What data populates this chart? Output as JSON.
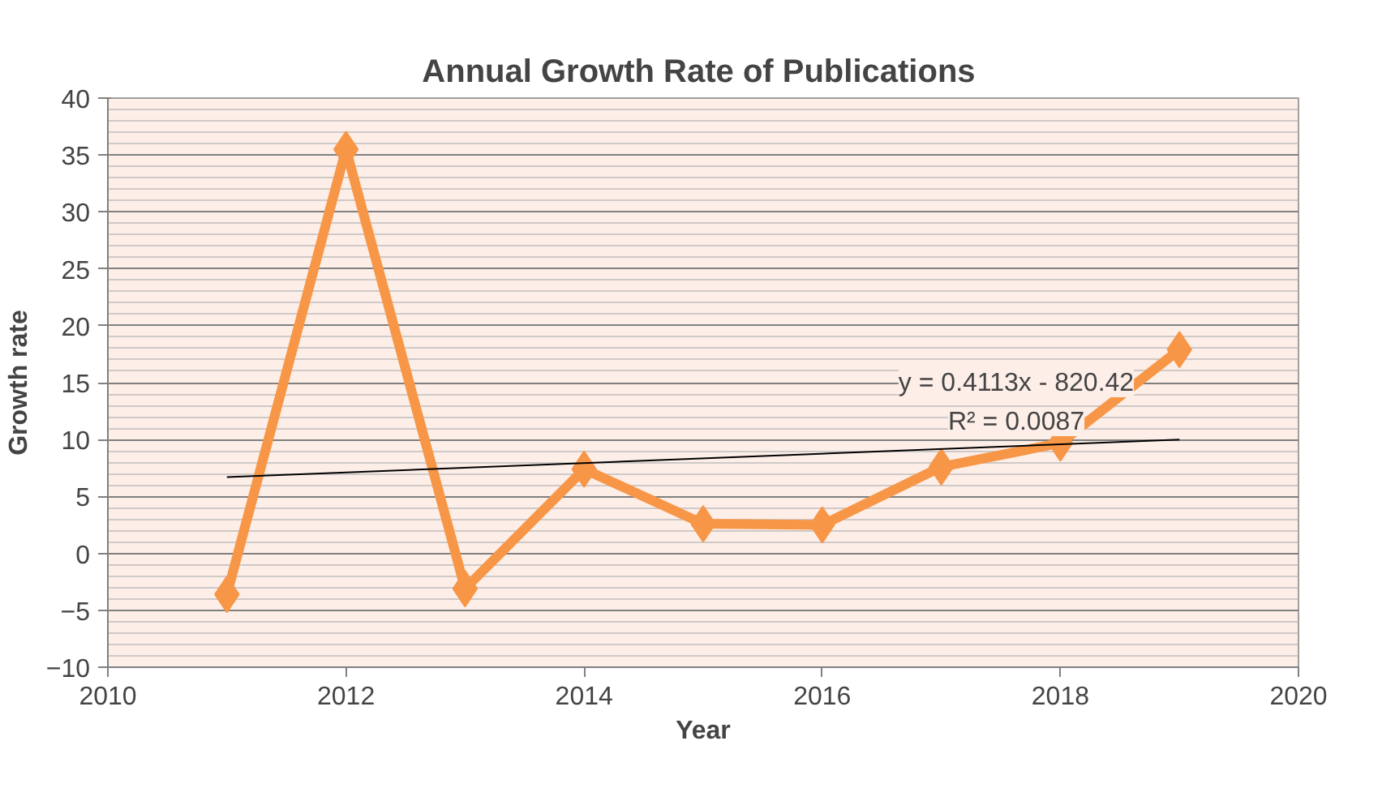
{
  "chart_data": {
    "type": "line",
    "title": "Annual  Growth Rate of Publications",
    "xlabel": "Year",
    "ylabel": "Growth rate",
    "series": [
      {
        "color": "#f79646",
        "x": [
          2011,
          2012,
          2013,
          2014,
          2015,
          2016,
          2017,
          2018,
          2019
        ],
        "values": [
          -3.6,
          35.5,
          -3.1,
          7.4,
          2.6,
          2.5,
          7.6,
          9.7,
          17.9
        ],
        "marker": "diamond"
      },
      {
        "type": "line",
        "color": "#000000",
        "x": [
          2011,
          2019
        ],
        "values": [
          6.7,
          10.0
        ],
        "marker": "none"
      }
    ],
    "annotations": [
      "y = 0.4113x - 820.42",
      "R² = 0.0087"
    ],
    "xlim": [
      2010,
      2020
    ],
    "xticks": [
      2010,
      2012,
      2014,
      2016,
      2018,
      2020
    ],
    "ylim": [
      -10,
      40
    ],
    "yticks": [
      -10,
      -5,
      0,
      5,
      10,
      15,
      20,
      25,
      30,
      35,
      40
    ],
    "grid": "y",
    "line_style": "solid"
  }
}
